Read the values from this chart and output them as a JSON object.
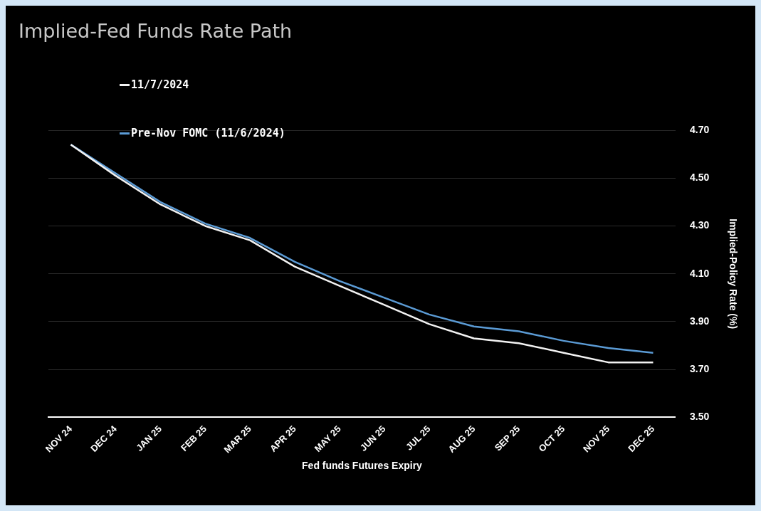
{
  "chart_data": {
    "type": "line",
    "title": "Implied-Fed Funds Rate Path",
    "xlabel": "Fed funds Futures Expiry",
    "ylabel": "Implied-Policy Rate (%)",
    "categories": [
      "NOV 24",
      "DEC 24",
      "JAN 25",
      "FEB 25",
      "MAR 25",
      "APR 25",
      "MAY 25",
      "JUN 25",
      "JUL 25",
      "AUG 25",
      "SEP 25",
      "OCT 25",
      "NOV 25",
      "DEC 25"
    ],
    "series": [
      {
        "name": "11/7/2024",
        "color": "#f2f2f2",
        "values": [
          4.64,
          4.51,
          4.39,
          4.3,
          4.24,
          4.13,
          4.05,
          3.97,
          3.89,
          3.83,
          3.81,
          3.77,
          3.73,
          3.73
        ]
      },
      {
        "name": "Pre-Nov FOMC (11/6/2024)",
        "color": "#5b9bd5",
        "values": [
          4.64,
          4.52,
          4.4,
          4.31,
          4.25,
          4.15,
          4.07,
          4.0,
          3.93,
          3.88,
          3.86,
          3.82,
          3.79,
          3.77
        ]
      }
    ],
    "ylim": [
      3.5,
      4.7
    ],
    "yticks": [
      {
        "value": 3.5,
        "label": "3.50"
      },
      {
        "value": 3.7,
        "label": "3.70"
      },
      {
        "value": 3.9,
        "label": "3.90"
      },
      {
        "value": 4.1,
        "label": "4.10"
      },
      {
        "value": 4.3,
        "label": "4.30"
      },
      {
        "value": 4.5,
        "label": "4.50"
      },
      {
        "value": 4.7,
        "label": "4.70"
      }
    ],
    "grid": "y",
    "legend": "top left",
    "marker": "none",
    "line_style": "solid"
  }
}
